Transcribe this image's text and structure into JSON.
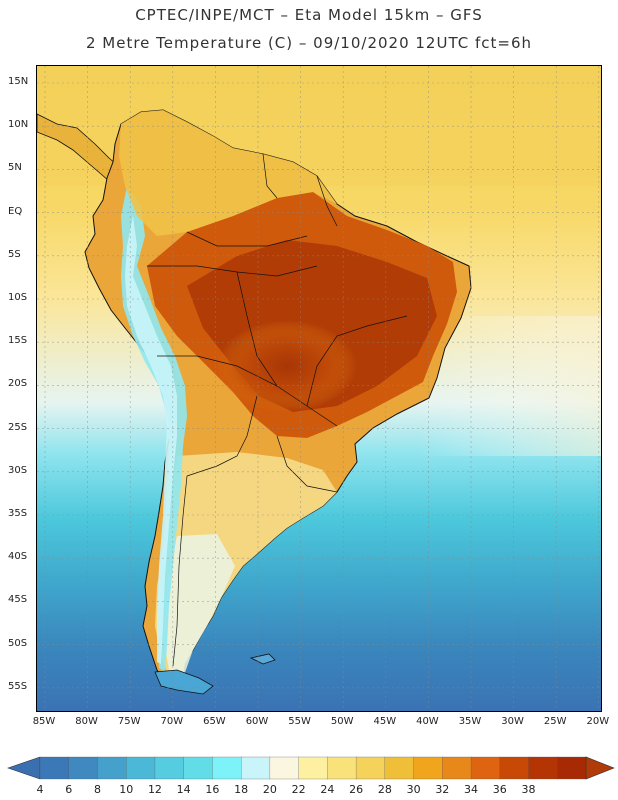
{
  "header": {
    "title_line1": "CPTEC/INPE/MCT –  Eta Model 15km – GFS",
    "title_line2": "2 Metre Temperature (C) – 09/10/2020 12UTC fct=6h"
  },
  "map": {
    "lat_labels": [
      "15N",
      "10N",
      "5N",
      "EQ",
      "5S",
      "10S",
      "15S",
      "20S",
      "25S",
      "30S",
      "35S",
      "40S",
      "45S",
      "50S",
      "55S"
    ],
    "lon_labels": [
      "85W",
      "80W",
      "75W",
      "70W",
      "65W",
      "60W",
      "55W",
      "50W",
      "45W",
      "40W",
      "35W",
      "30W",
      "25W",
      "20W"
    ],
    "variable": "2 Metre Temperature",
    "units": "C",
    "model": "Eta Model 15km",
    "forcing": "GFS",
    "valid_time": "09/10/2020 12UTC",
    "forecast_hour": "fct=6h"
  },
  "colorbar": {
    "labels": [
      "4",
      "6",
      "8",
      "10",
      "12",
      "14",
      "16",
      "18",
      "20",
      "22",
      "24",
      "26",
      "28",
      "30",
      "32",
      "34",
      "36",
      "38"
    ],
    "colors": [
      "#3b78b8",
      "#3f88c0",
      "#45a0cc",
      "#4cb8d8",
      "#55cce0",
      "#62dde8",
      "#7df2f8",
      "#c8f4fa",
      "#fbf6e0",
      "#fdf0a0",
      "#f9e27a",
      "#f5d25a",
      "#f0bf3a",
      "#f0a51c",
      "#e8871a",
      "#de6412",
      "#c84806",
      "#b53404",
      "#a82a04"
    ],
    "low_arrow_color": "#3a6fb0",
    "high_arrow_color": "#b03a08"
  }
}
